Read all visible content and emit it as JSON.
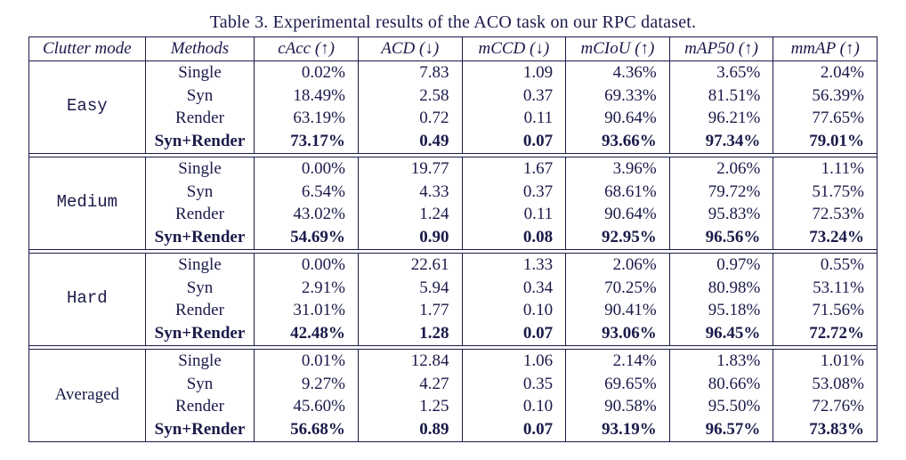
{
  "caption": "Table 3. Experimental results of the ACO task on our RPC dataset.",
  "columns": {
    "clutter": "Clutter mode",
    "methods": "Methods",
    "metrics": [
      "cAcc (↑)",
      "ACD (↓)",
      "mCCD (↓)",
      "mCIoU (↑)",
      "mAP50 (↑)",
      "mmAP (↑)"
    ]
  },
  "metric_align": [
    "right",
    "right",
    "right",
    "right",
    "right",
    "right"
  ],
  "groups": [
    {
      "mode": "Easy",
      "mode_font": "mono",
      "rows": [
        {
          "method": "Single",
          "bold": false,
          "vals": [
            "0.02%",
            "7.83",
            "1.09",
            "4.36%",
            "3.65%",
            "2.04%"
          ]
        },
        {
          "method": "Syn",
          "bold": false,
          "vals": [
            "18.49%",
            "2.58",
            "0.37",
            "69.33%",
            "81.51%",
            "56.39%"
          ]
        },
        {
          "method": "Render",
          "bold": false,
          "vals": [
            "63.19%",
            "0.72",
            "0.11",
            "90.64%",
            "96.21%",
            "77.65%"
          ]
        },
        {
          "method": "Syn+Render",
          "bold": true,
          "vals": [
            "73.17%",
            "0.49",
            "0.07",
            "93.66%",
            "97.34%",
            "79.01%"
          ]
        }
      ]
    },
    {
      "mode": "Medium",
      "mode_font": "mono",
      "rows": [
        {
          "method": "Single",
          "bold": false,
          "vals": [
            "0.00%",
            "19.77",
            "1.67",
            "3.96%",
            "2.06%",
            "1.11%"
          ]
        },
        {
          "method": "Syn",
          "bold": false,
          "vals": [
            "6.54%",
            "4.33",
            "0.37",
            "68.61%",
            "79.72%",
            "51.75%"
          ]
        },
        {
          "method": "Render",
          "bold": false,
          "vals": [
            "43.02%",
            "1.24",
            "0.11",
            "90.64%",
            "95.83%",
            "72.53%"
          ]
        },
        {
          "method": "Syn+Render",
          "bold": true,
          "vals": [
            "54.69%",
            "0.90",
            "0.08",
            "92.95%",
            "96.56%",
            "73.24%"
          ]
        }
      ]
    },
    {
      "mode": "Hard",
      "mode_font": "mono",
      "rows": [
        {
          "method": "Single",
          "bold": false,
          "vals": [
            "0.00%",
            "22.61",
            "1.33",
            "2.06%",
            "0.97%",
            "0.55%"
          ]
        },
        {
          "method": "Syn",
          "bold": false,
          "vals": [
            "2.91%",
            "5.94",
            "0.34",
            "70.25%",
            "80.98%",
            "53.11%"
          ]
        },
        {
          "method": "Render",
          "bold": false,
          "vals": [
            "31.01%",
            "1.77",
            "0.10",
            "90.41%",
            "95.18%",
            "71.56%"
          ]
        },
        {
          "method": "Syn+Render",
          "bold": true,
          "vals": [
            "42.48%",
            "1.28",
            "0.07",
            "93.06%",
            "96.45%",
            "72.72%"
          ]
        }
      ]
    },
    {
      "mode": "Averaged",
      "mode_font": "serif",
      "rows": [
        {
          "method": "Single",
          "bold": false,
          "vals": [
            "0.01%",
            "12.84",
            "1.06",
            "2.14%",
            "1.83%",
            "1.01%"
          ]
        },
        {
          "method": "Syn",
          "bold": false,
          "vals": [
            "9.27%",
            "4.27",
            "0.35",
            "69.65%",
            "80.66%",
            "53.08%"
          ]
        },
        {
          "method": "Render",
          "bold": false,
          "vals": [
            "45.60%",
            "1.25",
            "0.10",
            "90.58%",
            "95.50%",
            "72.76%"
          ]
        },
        {
          "method": "Syn+Render",
          "bold": true,
          "vals": [
            "56.68%",
            "0.89",
            "0.07",
            "93.19%",
            "96.57%",
            "73.83%"
          ]
        }
      ]
    }
  ],
  "style": {
    "text_color": "#1a1a4a",
    "rule_color": "#1a1a4a",
    "background": "#ffffff",
    "caption_fontsize": 20,
    "cell_fontsize": 19
  }
}
